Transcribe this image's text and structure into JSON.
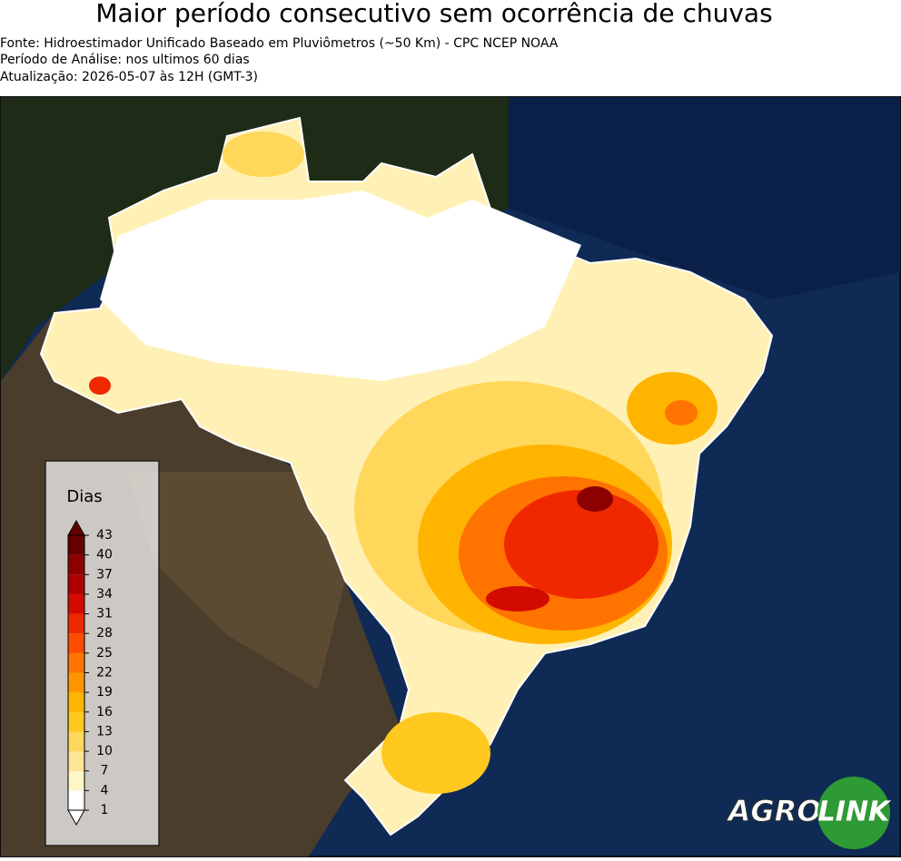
{
  "header": {
    "title": "Maior período consecutivo sem ocorrência de chuvas",
    "lines": [
      "Fonte: Hidroestimador Unificado Baseado em Pluviômetros (~50 Km) - CPC NCEP NOAA",
      "Período de Análise: nos ultimos 60 dias",
      "Atualização: 2026-05-07 às 12H (GMT-3)"
    ]
  },
  "legend": {
    "title": "Dias",
    "ticks": [
      1,
      4,
      7,
      10,
      13,
      16,
      19,
      22,
      25,
      28,
      31,
      34,
      37,
      40,
      43
    ],
    "colors": [
      "#ffffff",
      "#fff6c8",
      "#ffe596",
      "#ffd75a",
      "#ffc81e",
      "#ffb400",
      "#ff9600",
      "#ff7300",
      "#ff4b00",
      "#f02800",
      "#d20a00",
      "#af0000",
      "#8c0000",
      "#640000"
    ]
  },
  "logo": {
    "left": "AGRO",
    "right": "LINK"
  }
}
